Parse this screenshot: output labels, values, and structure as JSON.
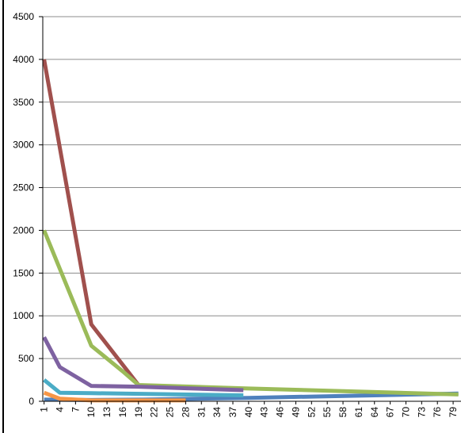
{
  "chart_data": {
    "type": "line",
    "xlim": [
      0.75,
      80.5
    ],
    "xticks": [
      1,
      4,
      7,
      10,
      13,
      16,
      19,
      22,
      25,
      28,
      31,
      34,
      37,
      40,
      43,
      46,
      49,
      52,
      55,
      58,
      61,
      64,
      67,
      70,
      73,
      76,
      79
    ],
    "ylim": [
      0,
      4500
    ],
    "yticks": [
      0,
      500,
      1000,
      1500,
      2000,
      2500,
      3000,
      3500,
      4000,
      4500
    ],
    "grid": true,
    "series": [
      {
        "color": "#4f81bd",
        "x": [
          1,
          10,
          20,
          40,
          80
        ],
        "values": [
          20,
          15,
          20,
          40,
          90
        ]
      },
      {
        "color": "#a0504d",
        "x": [
          1,
          10,
          19
        ],
        "values": [
          4000,
          900,
          190
        ]
      },
      {
        "color": "#9bbb59",
        "x": [
          1,
          10,
          16,
          19,
          40,
          80
        ],
        "values": [
          2000,
          650,
          350,
          190,
          150,
          80
        ]
      },
      {
        "color": "#7e62a1",
        "x": [
          1,
          4,
          10,
          19,
          39
        ],
        "values": [
          750,
          400,
          180,
          170,
          130
        ]
      },
      {
        "color": "#4bacc6",
        "x": [
          1,
          4,
          10,
          39
        ],
        "values": [
          250,
          100,
          95,
          70
        ]
      },
      {
        "color": "#f79646",
        "x": [
          1,
          4,
          10,
          28
        ],
        "values": [
          100,
          30,
          10,
          10
        ]
      }
    ]
  }
}
